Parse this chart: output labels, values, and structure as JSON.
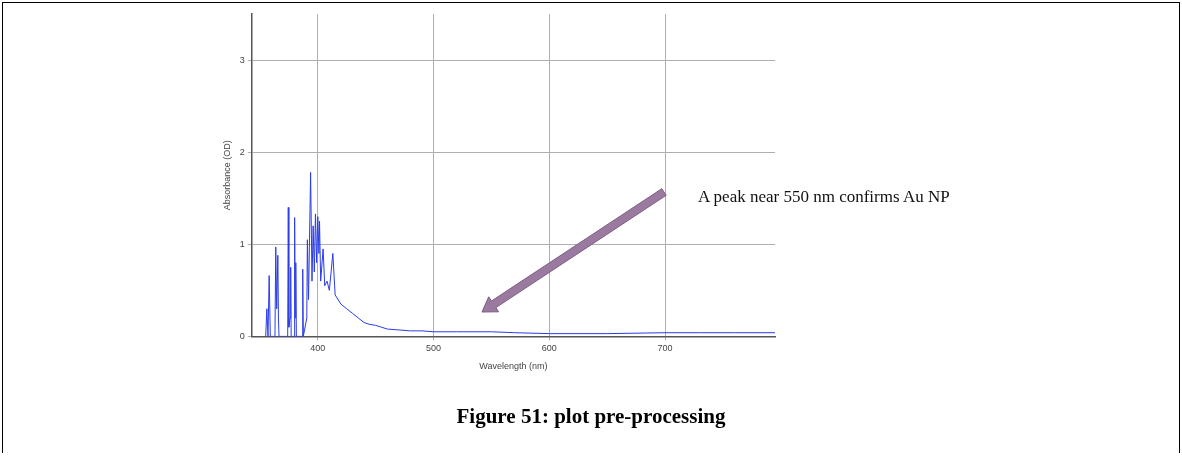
{
  "chart_data": {
    "type": "line",
    "title": "Figure 51: plot pre-processing",
    "xlabel": "Wavelength (nm)",
    "ylabel": "Absorbance (OD)",
    "xlim": [
      343,
      795
    ],
    "ylim": [
      0,
      3.5
    ],
    "xticks": [
      400,
      500,
      600,
      700
    ],
    "yticks": [
      0,
      1,
      2,
      3
    ],
    "grid": true,
    "legend": false,
    "marker": "none",
    "line_style": "solid",
    "annotations": [
      "A peak near 550 nm confirms Au NP"
    ],
    "x": [
      355,
      356,
      357,
      358,
      359,
      363,
      363.7,
      364.5,
      365.5,
      366,
      366.5,
      374,
      374.5,
      375,
      376,
      376.6,
      377,
      379.5,
      380,
      380.5,
      381,
      381.5,
      386.5,
      387,
      387.5,
      390.5,
      391,
      392,
      393.8,
      395,
      396,
      397,
      398,
      399,
      400,
      401,
      401.5,
      402.5,
      404.6,
      406,
      408,
      410,
      413,
      415,
      420,
      425,
      430,
      435,
      440,
      445,
      450,
      455,
      460,
      470,
      480,
      490,
      500,
      520,
      550,
      570,
      600,
      650,
      700,
      730,
      760,
      795
    ],
    "series": [
      {
        "color": "#2a3de8",
        "values": [
          0,
          0.3,
          0,
          0.66,
          0,
          0,
          0.97,
          0.3,
          0.88,
          0.2,
          0,
          0,
          1.4,
          0.1,
          0.2,
          0.75,
          0,
          0,
          1.29,
          0.2,
          0.8,
          0,
          0,
          0.73,
          0,
          0.2,
          1.05,
          0.4,
          1.78,
          0.6,
          1.2,
          0.7,
          1.33,
          0.8,
          1.3,
          0.9,
          1.25,
          0.6,
          0.95,
          0.55,
          0.6,
          0.5,
          0.9,
          0.45,
          0.35,
          0.3,
          0.25,
          0.2,
          0.15,
          0.13,
          0.12,
          0.1,
          0.08,
          0.07,
          0.06,
          0.06,
          0.05,
          0.05,
          0.05,
          0.04,
          0.03,
          0.03,
          0.04,
          0.04,
          0.04,
          0.04
        ]
      }
    ]
  }
}
